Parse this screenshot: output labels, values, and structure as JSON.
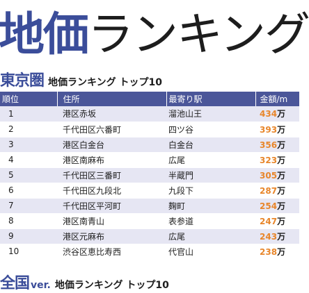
{
  "title": {
    "accent": "地価",
    "rest": "ランキング"
  },
  "section1": {
    "region": "東京圏",
    "subtitle": "地価ランキング トップ10"
  },
  "table": {
    "headers": {
      "rank": "順位",
      "address": "住所",
      "station": "最寄り駅",
      "price": "金額/m"
    },
    "rows": [
      {
        "rank": "1",
        "address": "港区赤坂",
        "station": "溜池山王",
        "price": "434",
        "unit": "万"
      },
      {
        "rank": "2",
        "address": "千代田区六番町",
        "station": "四ツ谷",
        "price": "393",
        "unit": "万"
      },
      {
        "rank": "3",
        "address": "港区白金台",
        "station": "白金台",
        "price": "356",
        "unit": "万"
      },
      {
        "rank": "4",
        "address": "港区南麻布",
        "station": "広尾",
        "price": "323",
        "unit": "万"
      },
      {
        "rank": "5",
        "address": "千代田区三番町",
        "station": "半蔵門",
        "price": "305",
        "unit": "万"
      },
      {
        "rank": "6",
        "address": "千代田区九段北",
        "station": "九段下",
        "price": "287",
        "unit": "万"
      },
      {
        "rank": "7",
        "address": "千代田区平河町",
        "station": "麹町",
        "price": "254",
        "unit": "万"
      },
      {
        "rank": "8",
        "address": "港区南青山",
        "station": "表参道",
        "price": "247",
        "unit": "万"
      },
      {
        "rank": "9",
        "address": "港区元麻布",
        "station": "広尾",
        "price": "243",
        "unit": "万"
      },
      {
        "rank": "10",
        "address": "渋谷区恵比寿西",
        "station": "代官山",
        "price": "238",
        "unit": "万"
      }
    ]
  },
  "section2": {
    "region": "全国",
    "ver": "ver.",
    "subtitle": "地価ランキング トップ10"
  },
  "colors": {
    "accent": "#3b4d9a",
    "header_bg": "#4b5699",
    "row_alt": "#e6e6f3",
    "price": "#e8862b"
  }
}
